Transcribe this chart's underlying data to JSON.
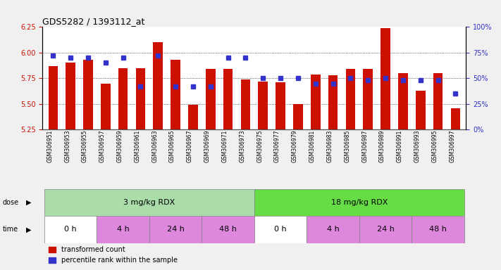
{
  "title": "GDS5282 / 1393112_at",
  "samples": [
    "GSM306951",
    "GSM306953",
    "GSM306955",
    "GSM306957",
    "GSM306959",
    "GSM306961",
    "GSM306963",
    "GSM306965",
    "GSM306967",
    "GSM306969",
    "GSM306971",
    "GSM306973",
    "GSM306975",
    "GSM306977",
    "GSM306979",
    "GSM306981",
    "GSM306983",
    "GSM306985",
    "GSM306987",
    "GSM306989",
    "GSM306991",
    "GSM306993",
    "GSM306995",
    "GSM306997"
  ],
  "transformed_count": [
    5.87,
    5.9,
    5.93,
    5.7,
    5.85,
    5.85,
    6.1,
    5.93,
    5.49,
    5.84,
    5.84,
    5.74,
    5.72,
    5.71,
    5.5,
    5.79,
    5.78,
    5.84,
    5.84,
    6.24,
    5.8,
    5.63,
    5.8,
    5.46
  ],
  "percentile_rank": [
    72,
    70,
    70,
    65,
    70,
    42,
    72,
    42,
    42,
    42,
    70,
    70,
    50,
    50,
    50,
    45,
    45,
    50,
    48,
    50,
    48,
    48,
    48,
    35
  ],
  "ylim_left": [
    5.25,
    6.25
  ],
  "ylim_right": [
    0,
    100
  ],
  "yticks_left": [
    5.25,
    5.5,
    5.75,
    6.0,
    6.25
  ],
  "yticks_right": [
    0,
    25,
    50,
    75,
    100
  ],
  "bar_color": "#cc1100",
  "square_color": "#3333cc",
  "bar_baseline": 5.25,
  "dose_groups": [
    {
      "label": "3 mg/kg RDX",
      "start": 0,
      "end": 12,
      "color": "#aaddaa"
    },
    {
      "label": "18 mg/kg RDX",
      "start": 12,
      "end": 24,
      "color": "#66dd44"
    }
  ],
  "time_groups": [
    {
      "label": "0 h",
      "start": 0,
      "end": 3,
      "color": "#ffffff"
    },
    {
      "label": "4 h",
      "start": 3,
      "end": 6,
      "color": "#dd88dd"
    },
    {
      "label": "24 h",
      "start": 6,
      "end": 9,
      "color": "#dd88dd"
    },
    {
      "label": "48 h",
      "start": 9,
      "end": 12,
      "color": "#dd88dd"
    },
    {
      "label": "0 h",
      "start": 12,
      "end": 15,
      "color": "#ffffff"
    },
    {
      "label": "4 h",
      "start": 15,
      "end": 18,
      "color": "#dd88dd"
    },
    {
      "label": "24 h",
      "start": 18,
      "end": 21,
      "color": "#dd88dd"
    },
    {
      "label": "48 h",
      "start": 21,
      "end": 24,
      "color": "#dd88dd"
    }
  ],
  "grid_yticks": [
    5.5,
    5.75,
    6.0
  ],
  "background_color": "#f0f0f0",
  "plot_bg": "#ffffff",
  "bar_width": 0.55,
  "label_fontsize": 7,
  "tick_fontsize": 6
}
